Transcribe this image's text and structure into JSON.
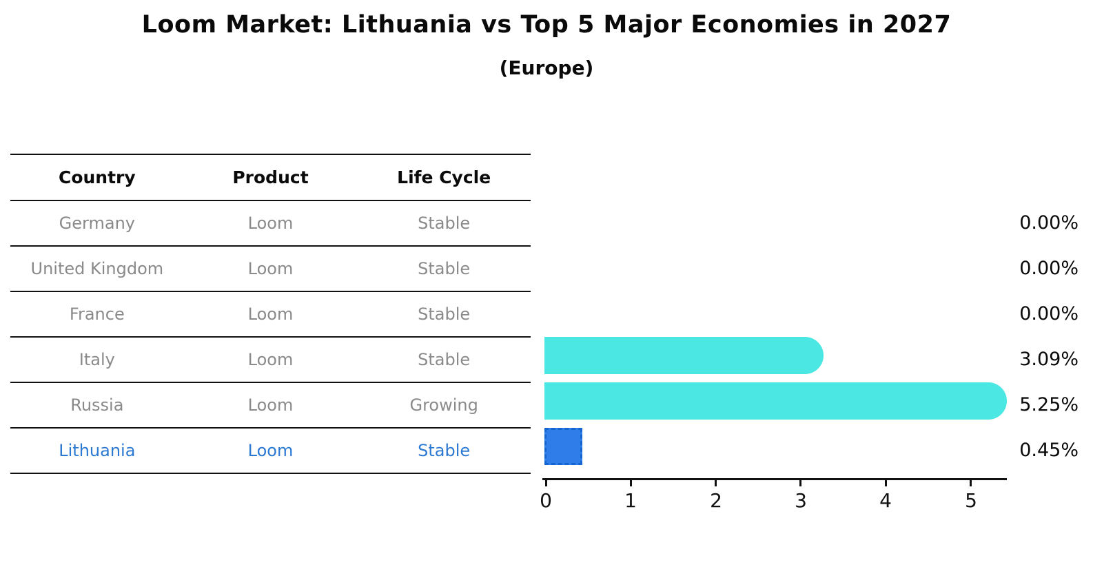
{
  "title": "Loom Market: Lithuania vs Top 5 Major Economies in 2027",
  "subtitle": "(Europe)",
  "table": {
    "headers": [
      "Country",
      "Product",
      "Life Cycle"
    ],
    "rows": [
      {
        "country": "Germany",
        "product": "Loom",
        "life_cycle": "Stable",
        "highlight": false
      },
      {
        "country": "United Kingdom",
        "product": "Loom",
        "life_cycle": "Stable",
        "highlight": false
      },
      {
        "country": "France",
        "product": "Loom",
        "life_cycle": "Stable",
        "highlight": false
      },
      {
        "country": "Italy",
        "product": "Loom",
        "life_cycle": "Stable",
        "highlight": false
      },
      {
        "country": "Russia",
        "product": "Loom",
        "life_cycle": "Growing",
        "highlight": false
      },
      {
        "country": "Lithuania",
        "product": "Loom",
        "life_cycle": "Stable",
        "highlight": true
      }
    ]
  },
  "chart_data": {
    "type": "bar",
    "orientation": "horizontal",
    "title": "Loom Market: Lithuania vs Top 5 Major Economies in 2027",
    "subtitle": "(Europe)",
    "categories": [
      "Germany",
      "United Kingdom",
      "France",
      "Italy",
      "Russia",
      "Lithuania"
    ],
    "values": [
      0.0,
      0.0,
      0.0,
      3.09,
      5.25,
      0.45
    ],
    "labels": [
      "0.00%",
      "0.00%",
      "0.00%",
      "3.09%",
      "5.25%",
      "0.45%"
    ],
    "xticks": [
      "0",
      "1",
      "2",
      "3",
      "4",
      "5"
    ],
    "xlim": [
      0,
      5.42
    ],
    "grid": false,
    "legend": "none",
    "highlight_index": 5,
    "colors": {
      "default_bar": "#4ae7e3",
      "highlight_bar": "#2e7de9",
      "highlight_border": "#1565d0",
      "axis": "#111111",
      "row_text": "#8a8a8a",
      "highlight_text": "#2b79d2"
    }
  }
}
